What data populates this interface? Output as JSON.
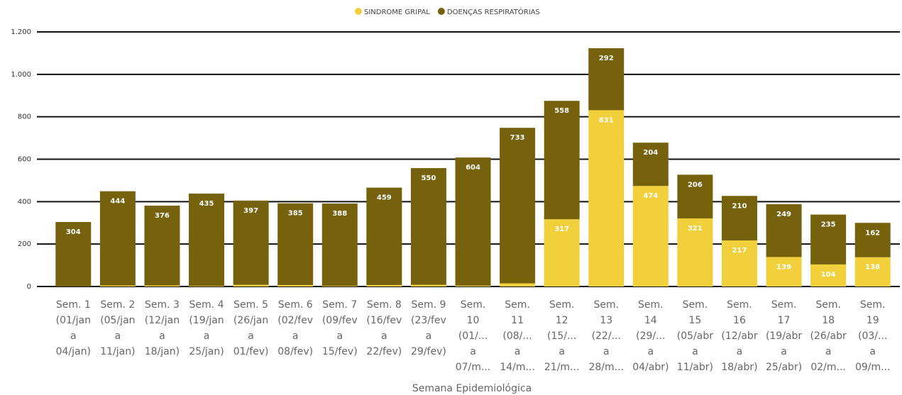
{
  "chart_data": {
    "type": "stacked_bar",
    "x_label": "Semana Epidemiológica",
    "categories": [
      [
        "Sem. 1",
        "(01/jan",
        "a",
        "04/jan)"
      ],
      [
        "Sem. 2",
        "(05/jan",
        "a",
        "11/jan)"
      ],
      [
        "Sem. 3",
        "(12/jan",
        "a",
        "18/jan)"
      ],
      [
        "Sem. 4",
        "(19/jan",
        "a",
        "25/jan)"
      ],
      [
        "Sem. 5",
        "(26/jan",
        "a",
        "01/fev)"
      ],
      [
        "Sem. 6",
        "(02/fev",
        "a",
        "08/fev)"
      ],
      [
        "Sem. 7",
        "(09/fev",
        "a",
        "15/fev)"
      ],
      [
        "Sem. 8",
        "(16/fev",
        "a",
        "22/fev)"
      ],
      [
        "Sem. 9",
        "(23/fev",
        "a",
        "29/fev)"
      ],
      [
        "Sem.",
        "10",
        "(01/...",
        "a",
        "07/m..."
      ],
      [
        "Sem.",
        "11",
        "(08/...",
        "a",
        "14/m..."
      ],
      [
        "Sem.",
        "12",
        "(15/...",
        "a",
        "21/m..."
      ],
      [
        "Sem.",
        "13",
        "(22/...",
        "a",
        "28/m..."
      ],
      [
        "Sem.",
        "14",
        "(29/...",
        "a",
        "04/abr)"
      ],
      [
        "Sem.",
        "15",
        "(05/abr",
        "a",
        "11/abr)"
      ],
      [
        "Sem.",
        "16",
        "(12/abr",
        "a",
        "18/abr)"
      ],
      [
        "Sem.",
        "17",
        "(19/abr",
        "a",
        "25/abr)"
      ],
      [
        "Sem.",
        "18",
        "(26/abr",
        "a",
        "02/m..."
      ],
      [
        "Sem.",
        "19",
        "(03/...",
        "a",
        "09/m..."
      ]
    ],
    "series": [
      {
        "name": "SINDROME GRIPAL",
        "color": "#f2d03c",
        "values": [
          0,
          5,
          5,
          3,
          8,
          7,
          3,
          7,
          8,
          4,
          15,
          317,
          831,
          474,
          321,
          217,
          139,
          104,
          138
        ]
      },
      {
        "name": "DOENÇAS RESPIRATÓRIAS",
        "color": "#76620c",
        "values": [
          304,
          444,
          376,
          435,
          397,
          385,
          388,
          459,
          550,
          604,
          733,
          558,
          292,
          204,
          206,
          210,
          249,
          235,
          162
        ]
      }
    ],
    "ylim": [
      0,
      1200
    ],
    "yticks": [
      0,
      200,
      400,
      600,
      800,
      {
        "value": 1000,
        "label": "1.000"
      },
      {
        "value": 1200,
        "label": "1.200"
      }
    ],
    "grid": true
  }
}
